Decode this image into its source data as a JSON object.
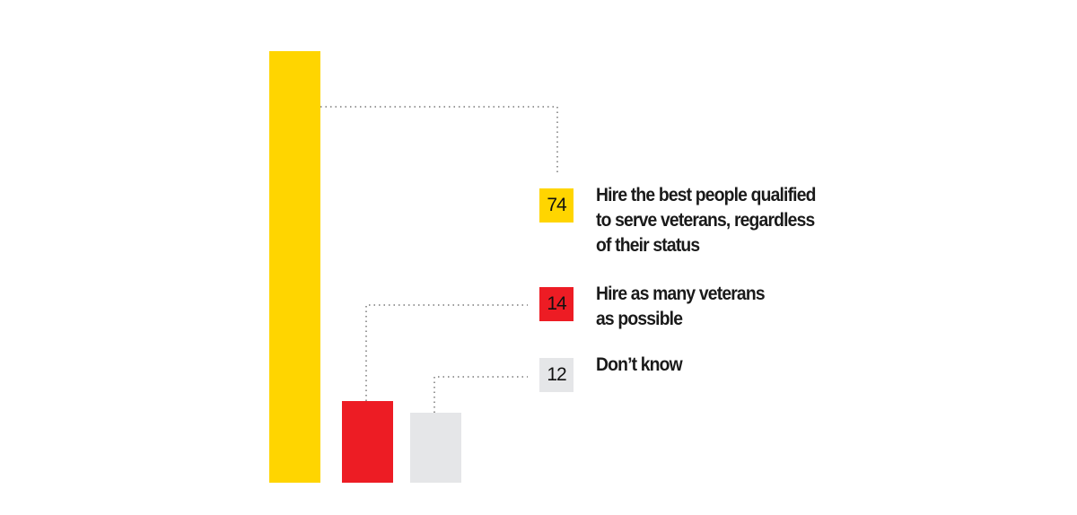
{
  "chart_data": {
    "type": "bar",
    "categories": [
      "Hire the best people qualified\nto serve veterans, regardless\nof their status",
      "Hire as many veterans\n as possible",
      "Don’t know"
    ],
    "values": [
      74,
      14,
      12
    ],
    "value_labels": [
      "74",
      "14",
      "12"
    ],
    "colors": [
      "#FFD500",
      "#ED1C24",
      "#E5E6E8"
    ],
    "title": "",
    "xlabel": "",
    "ylabel": "",
    "ylim": [
      0,
      74
    ],
    "grid": false,
    "legend": "right"
  }
}
